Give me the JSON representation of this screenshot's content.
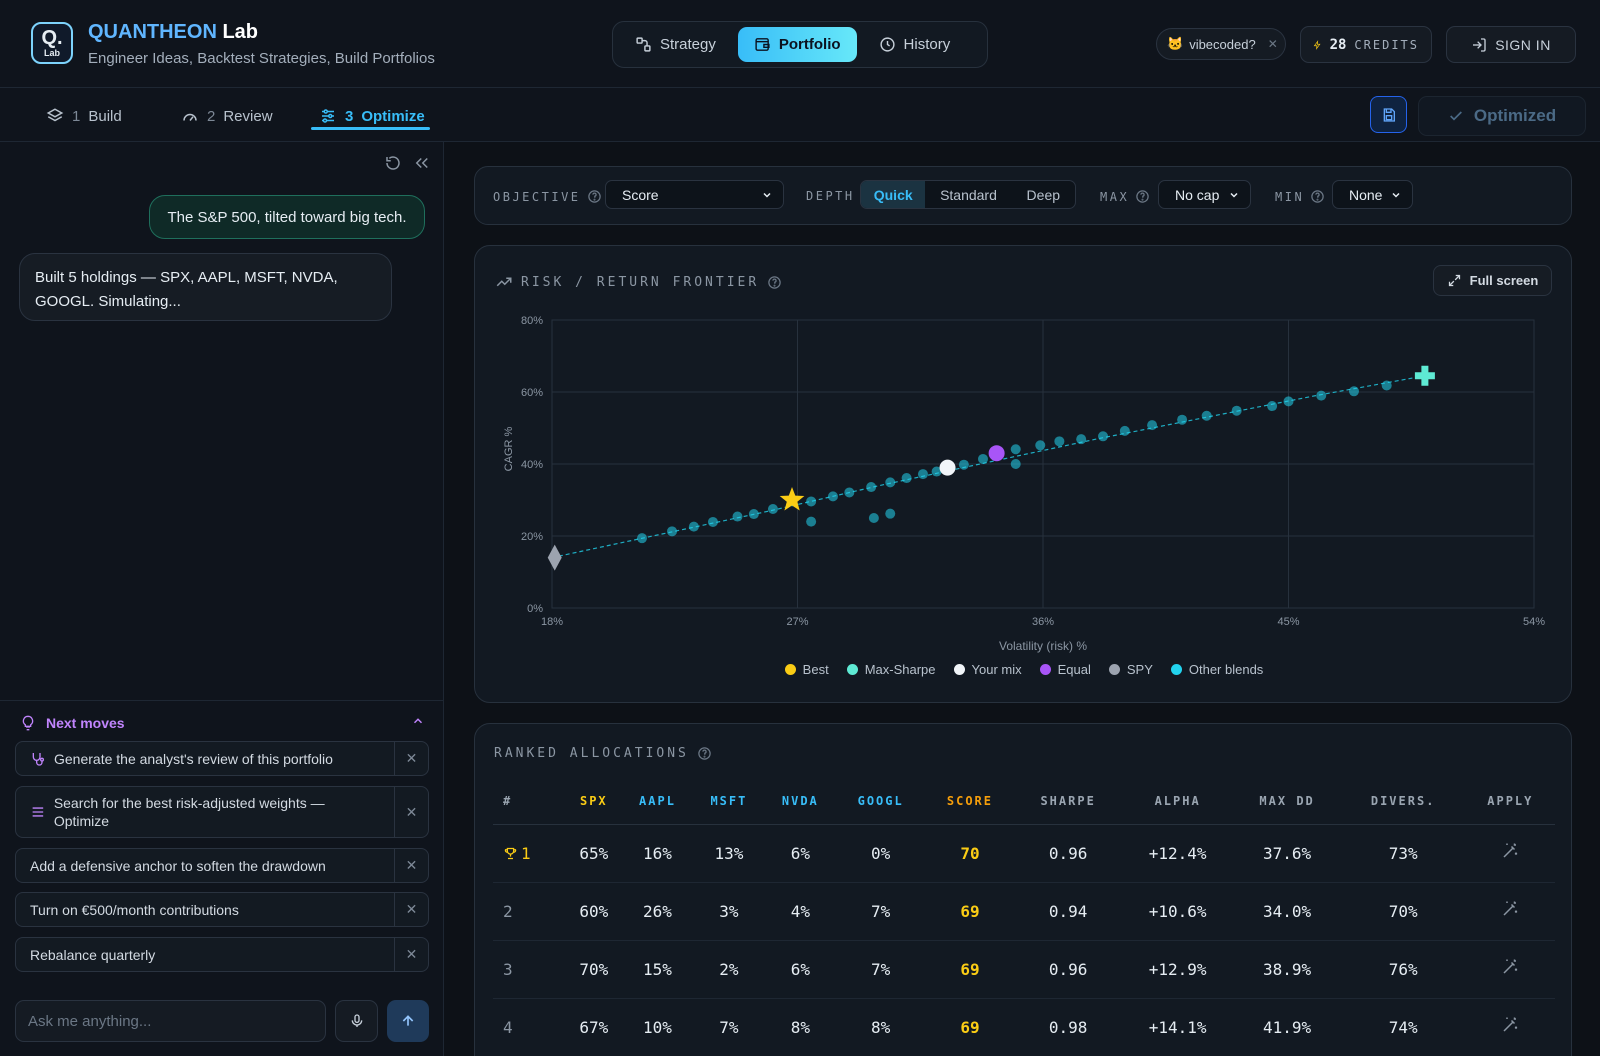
{
  "header": {
    "brand_part1": "QUANTHEON",
    "brand_part2": "Lab",
    "logo_letter": "Q.",
    "logo_sub": "Lab",
    "tagline": "Engineer Ideas, Backtest Strategies, Build Portfolios",
    "nav": [
      {
        "label": "Strategy",
        "icon": "strategy-icon",
        "active": false
      },
      {
        "label": "Portfolio",
        "icon": "wallet-icon",
        "active": true
      },
      {
        "label": "History",
        "icon": "clock-icon",
        "active": false
      }
    ],
    "vibe_tag": "vibecoded?",
    "credits_count": "28",
    "credits_label": "CREDITS",
    "signin_label": "SIGN IN"
  },
  "subnav": {
    "steps": [
      {
        "num": "1",
        "label": "Build"
      },
      {
        "num": "2",
        "label": "Review"
      },
      {
        "num": "3",
        "label": "Optimize"
      }
    ],
    "active_step": 2,
    "optimized_label": "Optimized"
  },
  "chat": {
    "user_message": "The S&P 500, tilted toward big tech.",
    "bot_message": "Built 5 holdings — SPX, AAPL, MSFT, NVDA, GOOGL. Simulating...",
    "next_moves_title": "Next moves",
    "suggestions": [
      "Generate the analyst's review of this portfolio",
      "Search for the best risk-adjusted weights — Optimize",
      "Add a defensive anchor to soften the drawdown",
      "Turn on €500/month contributions",
      "Rebalance quarterly"
    ],
    "input_placeholder": "Ask me anything..."
  },
  "controls": {
    "objective_label": "OBJECTIVE",
    "objective_value": "Score",
    "depth_label": "DEPTH",
    "depth_options": [
      "Quick",
      "Standard",
      "Deep"
    ],
    "depth_selected": "Quick",
    "max_label": "MAX",
    "max_value": "No cap",
    "min_label": "MIN",
    "min_value": "None"
  },
  "frontier": {
    "title": "RISK / RETURN FRONTIER",
    "fullscreen_label": "Full screen"
  },
  "chart_data": {
    "type": "scatter",
    "xlabel": "Volatility (risk) %",
    "ylabel": "CAGR %",
    "xlim": [
      18,
      54
    ],
    "ylim": [
      0,
      80
    ],
    "x_ticks": [
      "18%",
      "27%",
      "36%",
      "45%",
      "54%"
    ],
    "y_ticks": [
      "0%",
      "20%",
      "40%",
      "60%",
      "80%"
    ],
    "grid": true,
    "legend_position": "bottom",
    "frontier_line": {
      "x": [
        18.0,
        22.0,
        26.0,
        30.0,
        34.0,
        38.0,
        42.0,
        46.0,
        50.0
      ],
      "y": [
        14.0,
        20.5,
        27.0,
        34.0,
        40.5,
        47.0,
        53.0,
        59.0,
        64.5
      ]
    },
    "highlights": [
      {
        "name": "Best",
        "x": 26.8,
        "y": 30.0,
        "color": "#facc15",
        "marker": "star"
      },
      {
        "name": "Max-Sharpe",
        "x": 50.0,
        "y": 64.5,
        "color": "#5eead4",
        "marker": "plus"
      },
      {
        "name": "Your mix",
        "x": 32.5,
        "y": 39.0,
        "color": "#f1f5f9",
        "marker": "circle"
      },
      {
        "name": "Equal",
        "x": 34.3,
        "y": 43.0,
        "color": "#a855f7",
        "marker": "circle"
      },
      {
        "name": "SPY",
        "x": 18.1,
        "y": 14.0,
        "color": "#9ca3af",
        "marker": "diamond"
      }
    ],
    "series": [
      {
        "name": "Other blends",
        "color": "#22d3ee",
        "points": [
          [
            21.3,
            19.4
          ],
          [
            22.4,
            21.3
          ],
          [
            23.2,
            22.6
          ],
          [
            23.9,
            23.9
          ],
          [
            24.8,
            25.4
          ],
          [
            25.4,
            26.1
          ],
          [
            26.1,
            27.5
          ],
          [
            27.5,
            29.6
          ],
          [
            28.3,
            31.0
          ],
          [
            28.9,
            32.1
          ],
          [
            29.7,
            33.6
          ],
          [
            30.4,
            34.9
          ],
          [
            31.0,
            36.1
          ],
          [
            31.6,
            37.2
          ],
          [
            32.1,
            37.9
          ],
          [
            33.1,
            39.8
          ],
          [
            33.8,
            41.4
          ],
          [
            35.0,
            44.1
          ],
          [
            35.9,
            45.2
          ],
          [
            36.6,
            46.3
          ],
          [
            37.4,
            46.9
          ],
          [
            38.2,
            47.7
          ],
          [
            39.0,
            49.2
          ],
          [
            40.0,
            50.8
          ],
          [
            41.1,
            52.3
          ],
          [
            42.0,
            53.4
          ],
          [
            43.1,
            54.8
          ],
          [
            44.4,
            56.1
          ],
          [
            45.0,
            57.4
          ],
          [
            46.2,
            59.0
          ],
          [
            47.4,
            60.2
          ],
          [
            48.6,
            61.8
          ],
          [
            29.8,
            25.0
          ],
          [
            30.4,
            26.2
          ],
          [
            27.5,
            24.0
          ],
          [
            35.0,
            40.0
          ]
        ]
      }
    ]
  },
  "ranked": {
    "title": "RANKED ALLOCATIONS",
    "columns": [
      "#",
      "SPX",
      "AAPL",
      "MSFT",
      "NVDA",
      "GOOGL",
      "SCORE",
      "SHARPE",
      "ALPHA",
      "MAX DD",
      "DIVERS.",
      "APPLY"
    ],
    "rows": [
      {
        "rank": "1",
        "spx": "65%",
        "aapl": "16%",
        "msft": "13%",
        "nvda": "6%",
        "googl": "0%",
        "score": "70",
        "sharpe": "0.96",
        "alpha": "+12.4%",
        "maxdd": "37.6%",
        "divers": "73%"
      },
      {
        "rank": "2",
        "spx": "60%",
        "aapl": "26%",
        "msft": "3%",
        "nvda": "4%",
        "googl": "7%",
        "score": "69",
        "sharpe": "0.94",
        "alpha": "+10.6%",
        "maxdd": "34.0%",
        "divers": "70%"
      },
      {
        "rank": "3",
        "spx": "70%",
        "aapl": "15%",
        "msft": "2%",
        "nvda": "6%",
        "googl": "7%",
        "score": "69",
        "sharpe": "0.96",
        "alpha": "+12.9%",
        "maxdd": "38.9%",
        "divers": "76%"
      },
      {
        "rank": "4",
        "spx": "67%",
        "aapl": "10%",
        "msft": "7%",
        "nvda": "8%",
        "googl": "8%",
        "score": "69",
        "sharpe": "0.98",
        "alpha": "+14.1%",
        "maxdd": "41.9%",
        "divers": "74%"
      }
    ]
  }
}
